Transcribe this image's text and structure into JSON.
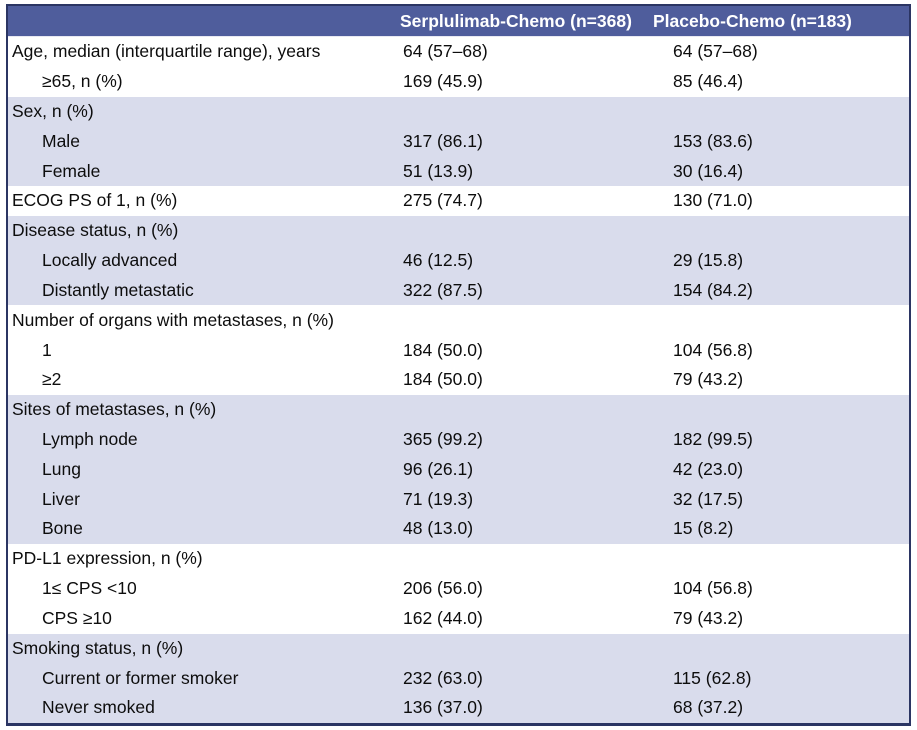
{
  "colors": {
    "header_bg": "#4F5D9C",
    "header_text": "#ffffff",
    "band_lavender": "#D9DCEC",
    "band_white": "#ffffff",
    "outer_border": "#2B3563",
    "body_text": "#0d0d0d"
  },
  "table": {
    "columns": {
      "serplulimab": "Serplulimab-Chemo (n=368)",
      "placebo": "Placebo-Chemo (n=183)"
    },
    "rows": [
      {
        "label": "Age, median (interquartile range), years",
        "indent": false,
        "serplulimab": "64 (57–68)",
        "placebo": "64 (57–68)"
      },
      {
        "label": "≥65, n (%)",
        "indent": true,
        "serplulimab": "169 (45.9)",
        "placebo": "85 (46.4)"
      },
      {
        "label": "Sex, n (%)",
        "indent": false,
        "serplulimab": "",
        "placebo": ""
      },
      {
        "label": "Male",
        "indent": true,
        "serplulimab": "317 (86.1)",
        "placebo": "153 (83.6)"
      },
      {
        "label": "Female",
        "indent": true,
        "serplulimab": "51 (13.9)",
        "placebo": "30 (16.4)"
      },
      {
        "label": "ECOG PS of 1, n (%)",
        "indent": false,
        "serplulimab": "275 (74.7)",
        "placebo": "130 (71.0)"
      },
      {
        "label": "Disease status, n (%)",
        "indent": false,
        "serplulimab": "",
        "placebo": ""
      },
      {
        "label": "Locally advanced",
        "indent": true,
        "serplulimab": "46 (12.5)",
        "placebo": "29 (15.8)"
      },
      {
        "label": "Distantly metastatic",
        "indent": true,
        "serplulimab": "322 (87.5)",
        "placebo": "154 (84.2)"
      },
      {
        "label": "Number of organs with metastases, n (%)",
        "indent": false,
        "serplulimab": "",
        "placebo": ""
      },
      {
        "label": "1",
        "indent": true,
        "serplulimab": "184 (50.0)",
        "placebo": "104 (56.8)"
      },
      {
        "label": "≥2",
        "indent": true,
        "serplulimab": "184 (50.0)",
        "placebo": "79 (43.2)"
      },
      {
        "label": "Sites of metastases, n (%)",
        "indent": false,
        "serplulimab": "",
        "placebo": ""
      },
      {
        "label": "Lymph node",
        "indent": true,
        "serplulimab": "365 (99.2)",
        "placebo": "182 (99.5)"
      },
      {
        "label": "Lung",
        "indent": true,
        "serplulimab": "96 (26.1)",
        "placebo": "42 (23.0)"
      },
      {
        "label": "Liver",
        "indent": true,
        "serplulimab": "71 (19.3)",
        "placebo": "32 (17.5)"
      },
      {
        "label": "Bone",
        "indent": true,
        "serplulimab": "48 (13.0)",
        "placebo": "15 (8.2)"
      },
      {
        "label": "PD-L1 expression, n (%)",
        "indent": false,
        "serplulimab": "",
        "placebo": ""
      },
      {
        "label": "1≤ CPS <10",
        "indent": true,
        "serplulimab": "206 (56.0)",
        "placebo": "104 (56.8)"
      },
      {
        "label": "CPS ≥10",
        "indent": true,
        "serplulimab": "162 (44.0)",
        "placebo": "79 (43.2)"
      },
      {
        "label": "Smoking status, n (%)",
        "indent": false,
        "serplulimab": "",
        "placebo": ""
      },
      {
        "label": "Current or former smoker",
        "indent": true,
        "serplulimab": "232 (63.0)",
        "placebo": "115 (62.8)"
      },
      {
        "label": "Never smoked",
        "indent": true,
        "serplulimab": "136 (37.0)",
        "placebo": "68 (37.2)"
      }
    ]
  }
}
